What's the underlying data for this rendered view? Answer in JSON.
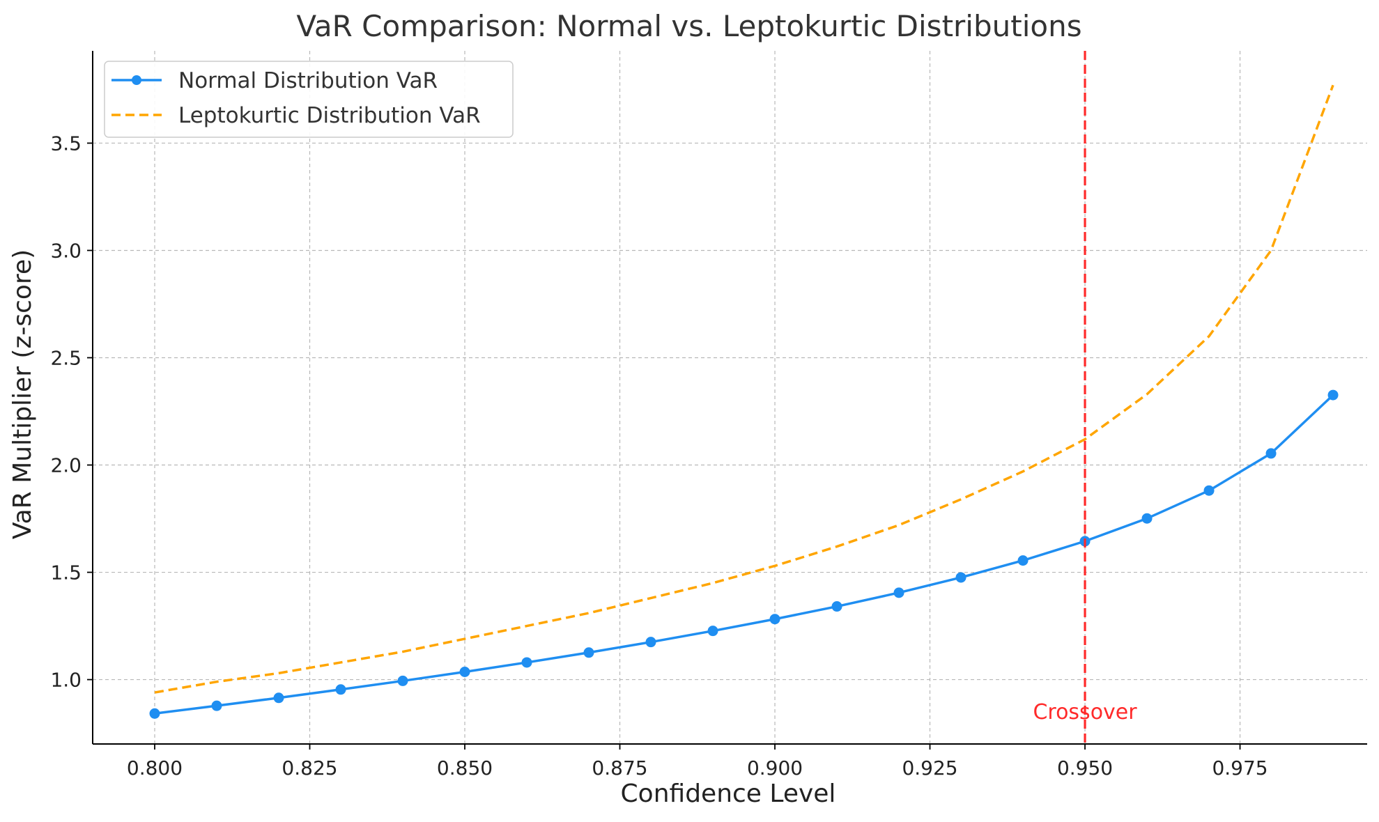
{
  "chart_data": {
    "type": "line",
    "title": "VaR Comparison: Normal vs. Leptokurtic Distributions",
    "xlabel": "Confidence Level",
    "ylabel": "VaR Multiplier (z-score)",
    "xlim": [
      0.79,
      0.9955
    ],
    "ylim": [
      0.7,
      3.93
    ],
    "x_ticks": [
      0.8,
      0.825,
      0.85,
      0.875,
      0.9,
      0.925,
      0.95,
      0.975
    ],
    "x_tick_labels": [
      "0.800",
      "0.825",
      "0.850",
      "0.875",
      "0.900",
      "0.925",
      "0.950",
      "0.975"
    ],
    "y_ticks": [
      1.0,
      1.5,
      2.0,
      2.5,
      3.0,
      3.5
    ],
    "y_tick_labels": [
      "1.0",
      "1.5",
      "2.0",
      "2.5",
      "3.0",
      "3.5"
    ],
    "grid": true,
    "legend_position": "top-left",
    "x": [
      0.8,
      0.81,
      0.82,
      0.83,
      0.84,
      0.85,
      0.86,
      0.87,
      0.88,
      0.89,
      0.9,
      0.91,
      0.92,
      0.93,
      0.94,
      0.95,
      0.96,
      0.97,
      0.98,
      0.99
    ],
    "series": [
      {
        "name": "Normal Distribution VaR",
        "style": "solid-markers",
        "color": "#1f8ef1",
        "values": [
          0.842,
          0.878,
          0.915,
          0.954,
          0.994,
          1.036,
          1.08,
          1.126,
          1.175,
          1.227,
          1.282,
          1.341,
          1.405,
          1.476,
          1.555,
          1.645,
          1.751,
          1.881,
          2.054,
          2.326
        ]
      },
      {
        "name": "Leptokurtic Distribution VaR",
        "style": "dashed",
        "color": "#ffa500",
        "values": [
          0.94,
          0.99,
          1.03,
          1.08,
          1.13,
          1.19,
          1.25,
          1.31,
          1.38,
          1.45,
          1.53,
          1.62,
          1.72,
          1.84,
          1.97,
          2.12,
          2.33,
          2.6,
          3.0,
          3.77
        ]
      }
    ],
    "annotations": [
      {
        "type": "vline",
        "x": 0.95,
        "color": "#ff2a2a",
        "label": "Crossover",
        "label_y": 0.85
      }
    ]
  }
}
